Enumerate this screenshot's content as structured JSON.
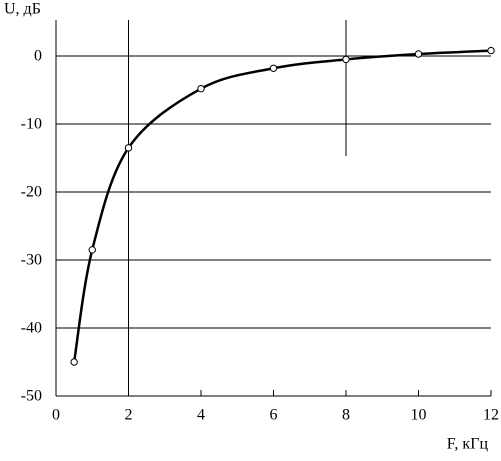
{
  "chart_data": {
    "type": "line",
    "y_label": "U, дБ",
    "x_label": "F, кГц",
    "x": [
      0.5,
      1,
      2,
      4,
      6,
      8,
      10,
      12
    ],
    "series": [
      {
        "name": "U",
        "color": "#000000",
        "values": [
          -45,
          -28.5,
          -13.5,
          -4.8,
          -1.8,
          -0.5,
          0.3,
          0.8
        ]
      }
    ],
    "xlim": [
      0,
      12
    ],
    "xticks": [
      0,
      2,
      4,
      6,
      8,
      10,
      12
    ],
    "ylim": [
      -50,
      5.3
    ],
    "yticks": [
      0,
      -10,
      -20,
      -30,
      -40,
      -50
    ],
    "grid": true
  }
}
